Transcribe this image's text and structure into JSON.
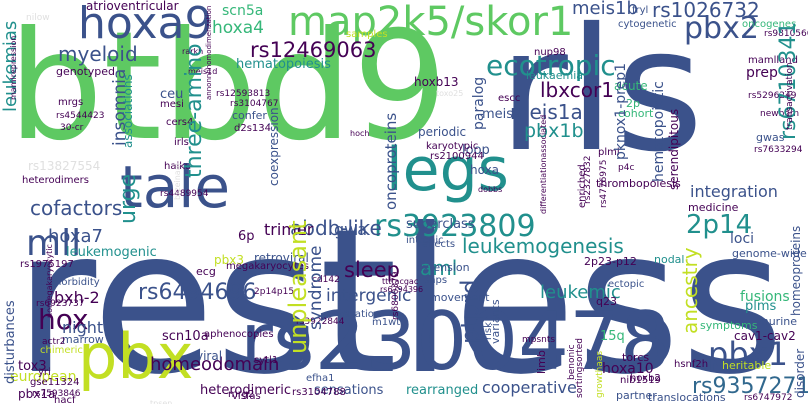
{
  "palette": {
    "purple": "#440154",
    "indigo": "#3b528b",
    "slate": "#31688e",
    "teal": "#21908d",
    "green": "#35b779",
    "lime": "#5ec962",
    "yellow": "#c2df23",
    "pale": "#e0e0e0"
  },
  "words": {
    "restless": "restless",
    "btbd9": "btbd9",
    "rls": "rls",
    "hoxa9": "hoxa9",
    "map2k5": "map2k5/skor1",
    "tale": "tale",
    "legs": "legs",
    "pbx": "pbx",
    "rs2300478": "rs2300478",
    "rs3923809": "rs3923809",
    "ecotropic": "ecotropic",
    "pbx2": "pbx2",
    "pbx1": "pbx1",
    "pbx1b": "pbx1b",
    "rs12469063": "rs12469063",
    "rs1026732": "rs1026732",
    "rs6494696": "rs6494696",
    "rs9357271": "rs9357271",
    "mll": "mll",
    "hox": "hox",
    "cofactors": "cofactors",
    "leukemogenesis": "leukemogenesis",
    "leukemic": "leukemic",
    "unpleasant": "unpleasant",
    "myeloid": "myeloid",
    "meis1a": "meis1a",
    "meis1b": "meis1b",
    "lbxcor1": "lbxcor1",
    "three_amino": "three-amino",
    "abdb_like": "abdb-like",
    "sleep": "sleep",
    "aml": "aml",
    "p2_14": "2p14",
    "homeodomain": "homeodomain",
    "hoxa7": "hoxa7",
    "ptprd": "ptprd",
    "urge": "urge",
    "syndrome": "syndrome",
    "insomnia": "insomnia",
    "hoxa4": "hoxa4",
    "scn5a": "scn5a",
    "hematopoiesis": "hematopoiesis",
    "leukemias": "leukemias",
    "atrioventricular": "atrioventricular",
    "rs6710341": "rs6710341",
    "ancestry": "ancestry",
    "heterodimeric": "heterodimeric",
    "sensations": "sensations",
    "rearranged": "rearranged",
    "cooperative": "cooperative",
    "intergenic": "intergenic",
    "superclass": "superclass",
    "integration": "integration",
    "medicine": "medicine",
    "extension": "extension",
    "trimer": "trimer",
    "gwa": "gwa",
    "leukemogenic": "leukemogenic",
    "european": "european",
    "homeoproteins": "homeoproteins",
    "hoxa10": "hoxa10",
    "q15": "15q",
    "bxh2": "bxh-2",
    "night": "night",
    "scn10a": "scn10a",
    "tox3": "tox3",
    "viral": "viral",
    "fusions": "fusions",
    "plms": "plms",
    "oncoproteins": "oncoproteins",
    "periodic": "periodic",
    "paralog": "paralog",
    "meis2": "meis2",
    "loop": "loop",
    "hoxa": "hoxa",
    "hoxb13": "hoxb13",
    "leukaemia": "leukaemia",
    "acute": "acute",
    "prep": "prep",
    "cohort": "cohort",
    "hematopoietic": "hematopoietic",
    "pknox1": "pknox1-prep1",
    "serendipitous": "serendipitous",
    "thrombopoiesis": "thrombopoiesis",
    "loci": "loci",
    "genome_wide": "genome-wide",
    "nodal": "nodal",
    "cav1": "cav1-cav2",
    "murine": "murine",
    "symptoms": "symptoms",
    "torcs": "torcs",
    "heritable": "heritable",
    "partner": "partner",
    "translocations": "translocations",
    "disturbances": "disturbances",
    "retroviral": "retroviral",
    "pbx3": "pbx3",
    "ecg": "ecg",
    "p6": "6p",
    "ceu": "ceu",
    "mesi": "mesi",
    "confer": "confer",
    "coexpression": "coexpression",
    "genotyped": "genotyped",
    "samples": "samples",
    "associations": "associations",
    "nup98": "nup98",
    "fryl": "fryl",
    "cytogenetic": "cytogenetic",
    "oncogenes": "oncogenes",
    "mamlland": "mamlland",
    "gwas": "gwas",
    "karyotypic": "karyotypic",
    "variation": "variation",
    "snps": "snps",
    "variants": "variants",
    "movement": "movement",
    "comorbidity": "comorbidity",
    "marrow": "marrow",
    "chimeric": "chimeric",
    "aphenocopies": "aphenocopies",
    "mrg2": "mrg2",
    "sytl1": "sytl1",
    "efha1": "efha1",
    "hoxb2": "hoxb2",
    "yri": "yri",
    "gse11324": "gse11324",
    "ectopic": "ectopic",
    "q23": "q23",
    "p2_23_12": "2p23-p12",
    "megakaryocytes": "megakaryocytes",
    "rs1975197": "rs1975197",
    "mrgs": "mrgs",
    "rs2100944": "rs2100944",
    "pbx1a": "pbx1a",
    "vlsfas": "vlsfas",
    "hacf": "hacf",
    "limb": "limb",
    "p2": "2p",
    "plmi": "plmi",
    "irls": "irls",
    "cers4": "cers4",
    "d2s134": "d2s134",
    "haiku": "haiku",
    "hematol": "hematol",
    "rs2300478_small": "rs3104767",
    "nib1519": "nib1519",
    "rs3104788": "rs3104788",
    "reflects": "reflects",
    "risk": "risk",
    "enriched": "enriched",
    "benonic": "benonic",
    "growthaas": "growthaas",
    "rs3922844": "rs3922844",
    "rs6923737": "rs6923737",
    "rs7593846": "rs7593846",
    "rs6747972": "rs6747972",
    "rs2327832": "rs2327832",
    "rs4544423": "rs4544423",
    "rs7633294": "rs7633294",
    "rs5296249": "rs5296249",
    "rs9810566": "rs9810566",
    "rs12593813": "rs12593813",
    "rs4489954": "rs4489954",
    "rs6800379": "rs6800379",
    "rs4776975": "rs4776975",
    "rs13827554": "rs13827554",
    "heterodimers": "heterodimers",
    "intronic": "intronic",
    "m1wt": "m1wt",
    "escc": "escc",
    "newborn": "newborn",
    "ttttacgac": "ttttacgac",
    "mpsnts": "mpsnts",
    "sortingsorted": "sortingsorted",
    "hsnf2h": "hsnf2h",
    "disorder": "disorder",
    "differentiationassociated": "differentiationassociated",
    "nomegakaryocytic": "nomegakaryocytic",
    "actr2": "actr2",
    "tpsen": "tpsen",
    "c30cr": "30-cr",
    "cd142": "cd142",
    "toxo25": "toxo25",
    "mamlrepression": "mamlrepression",
    "p2p14p15": "2p14p15",
    "nilow": "nilow",
    "rarkh": "rarkh",
    "meis1d": "meis1d",
    "nonanchorotabilo": "annonnhhomodimerization",
    "brzeinaaj": "brzeinaaj",
    "transcriptsin": "transactivation",
    "rs6794396": "rs6794396",
    "nomidpair": "p4c",
    "hoch": "hoch",
    "dobbs": "dobbs"
  }
}
